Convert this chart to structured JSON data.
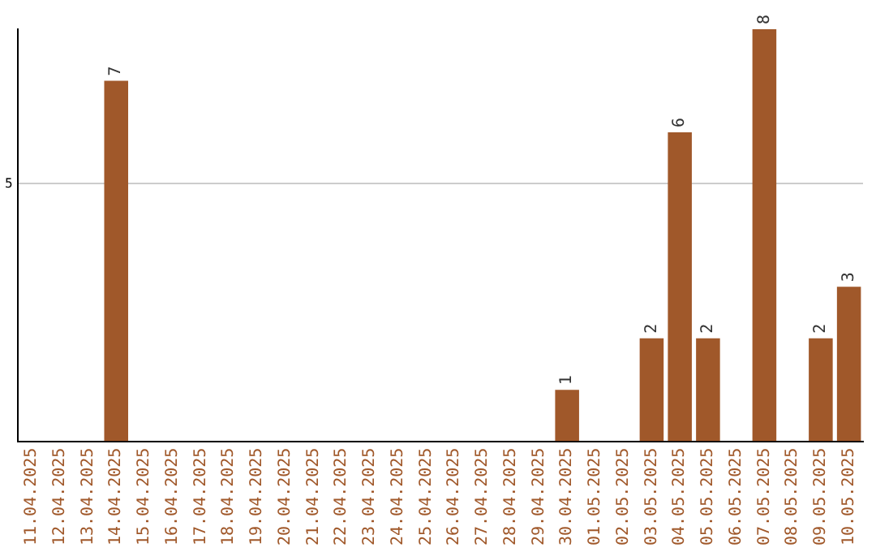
{
  "chart_data": {
    "type": "bar",
    "categories": [
      "11.04.2025",
      "12.04.2025",
      "13.04.2025",
      "14.04.2025",
      "15.04.2025",
      "16.04.2025",
      "17.04.2025",
      "18.04.2025",
      "19.04.2025",
      "20.04.2025",
      "21.04.2025",
      "22.04.2025",
      "23.04.2025",
      "24.04.2025",
      "25.04.2025",
      "26.04.2025",
      "27.04.2025",
      "28.04.2025",
      "29.04.2025",
      "30.04.2025",
      "01.05.2025",
      "02.05.2025",
      "03.05.2025",
      "04.05.2025",
      "05.05.2025",
      "06.05.2025",
      "07.05.2025",
      "08.05.2025",
      "09.05.2025",
      "10.05.2025"
    ],
    "values": [
      null,
      null,
      null,
      7,
      null,
      null,
      null,
      null,
      null,
      null,
      null,
      null,
      null,
      null,
      null,
      null,
      null,
      null,
      null,
      1,
      null,
      null,
      2,
      6,
      2,
      null,
      8,
      null,
      2,
      3
    ],
    "color": "#a0582a",
    "ylim": [
      0,
      8
    ],
    "yticks": [
      5
    ],
    "grid": "y",
    "data_labels": true
  }
}
